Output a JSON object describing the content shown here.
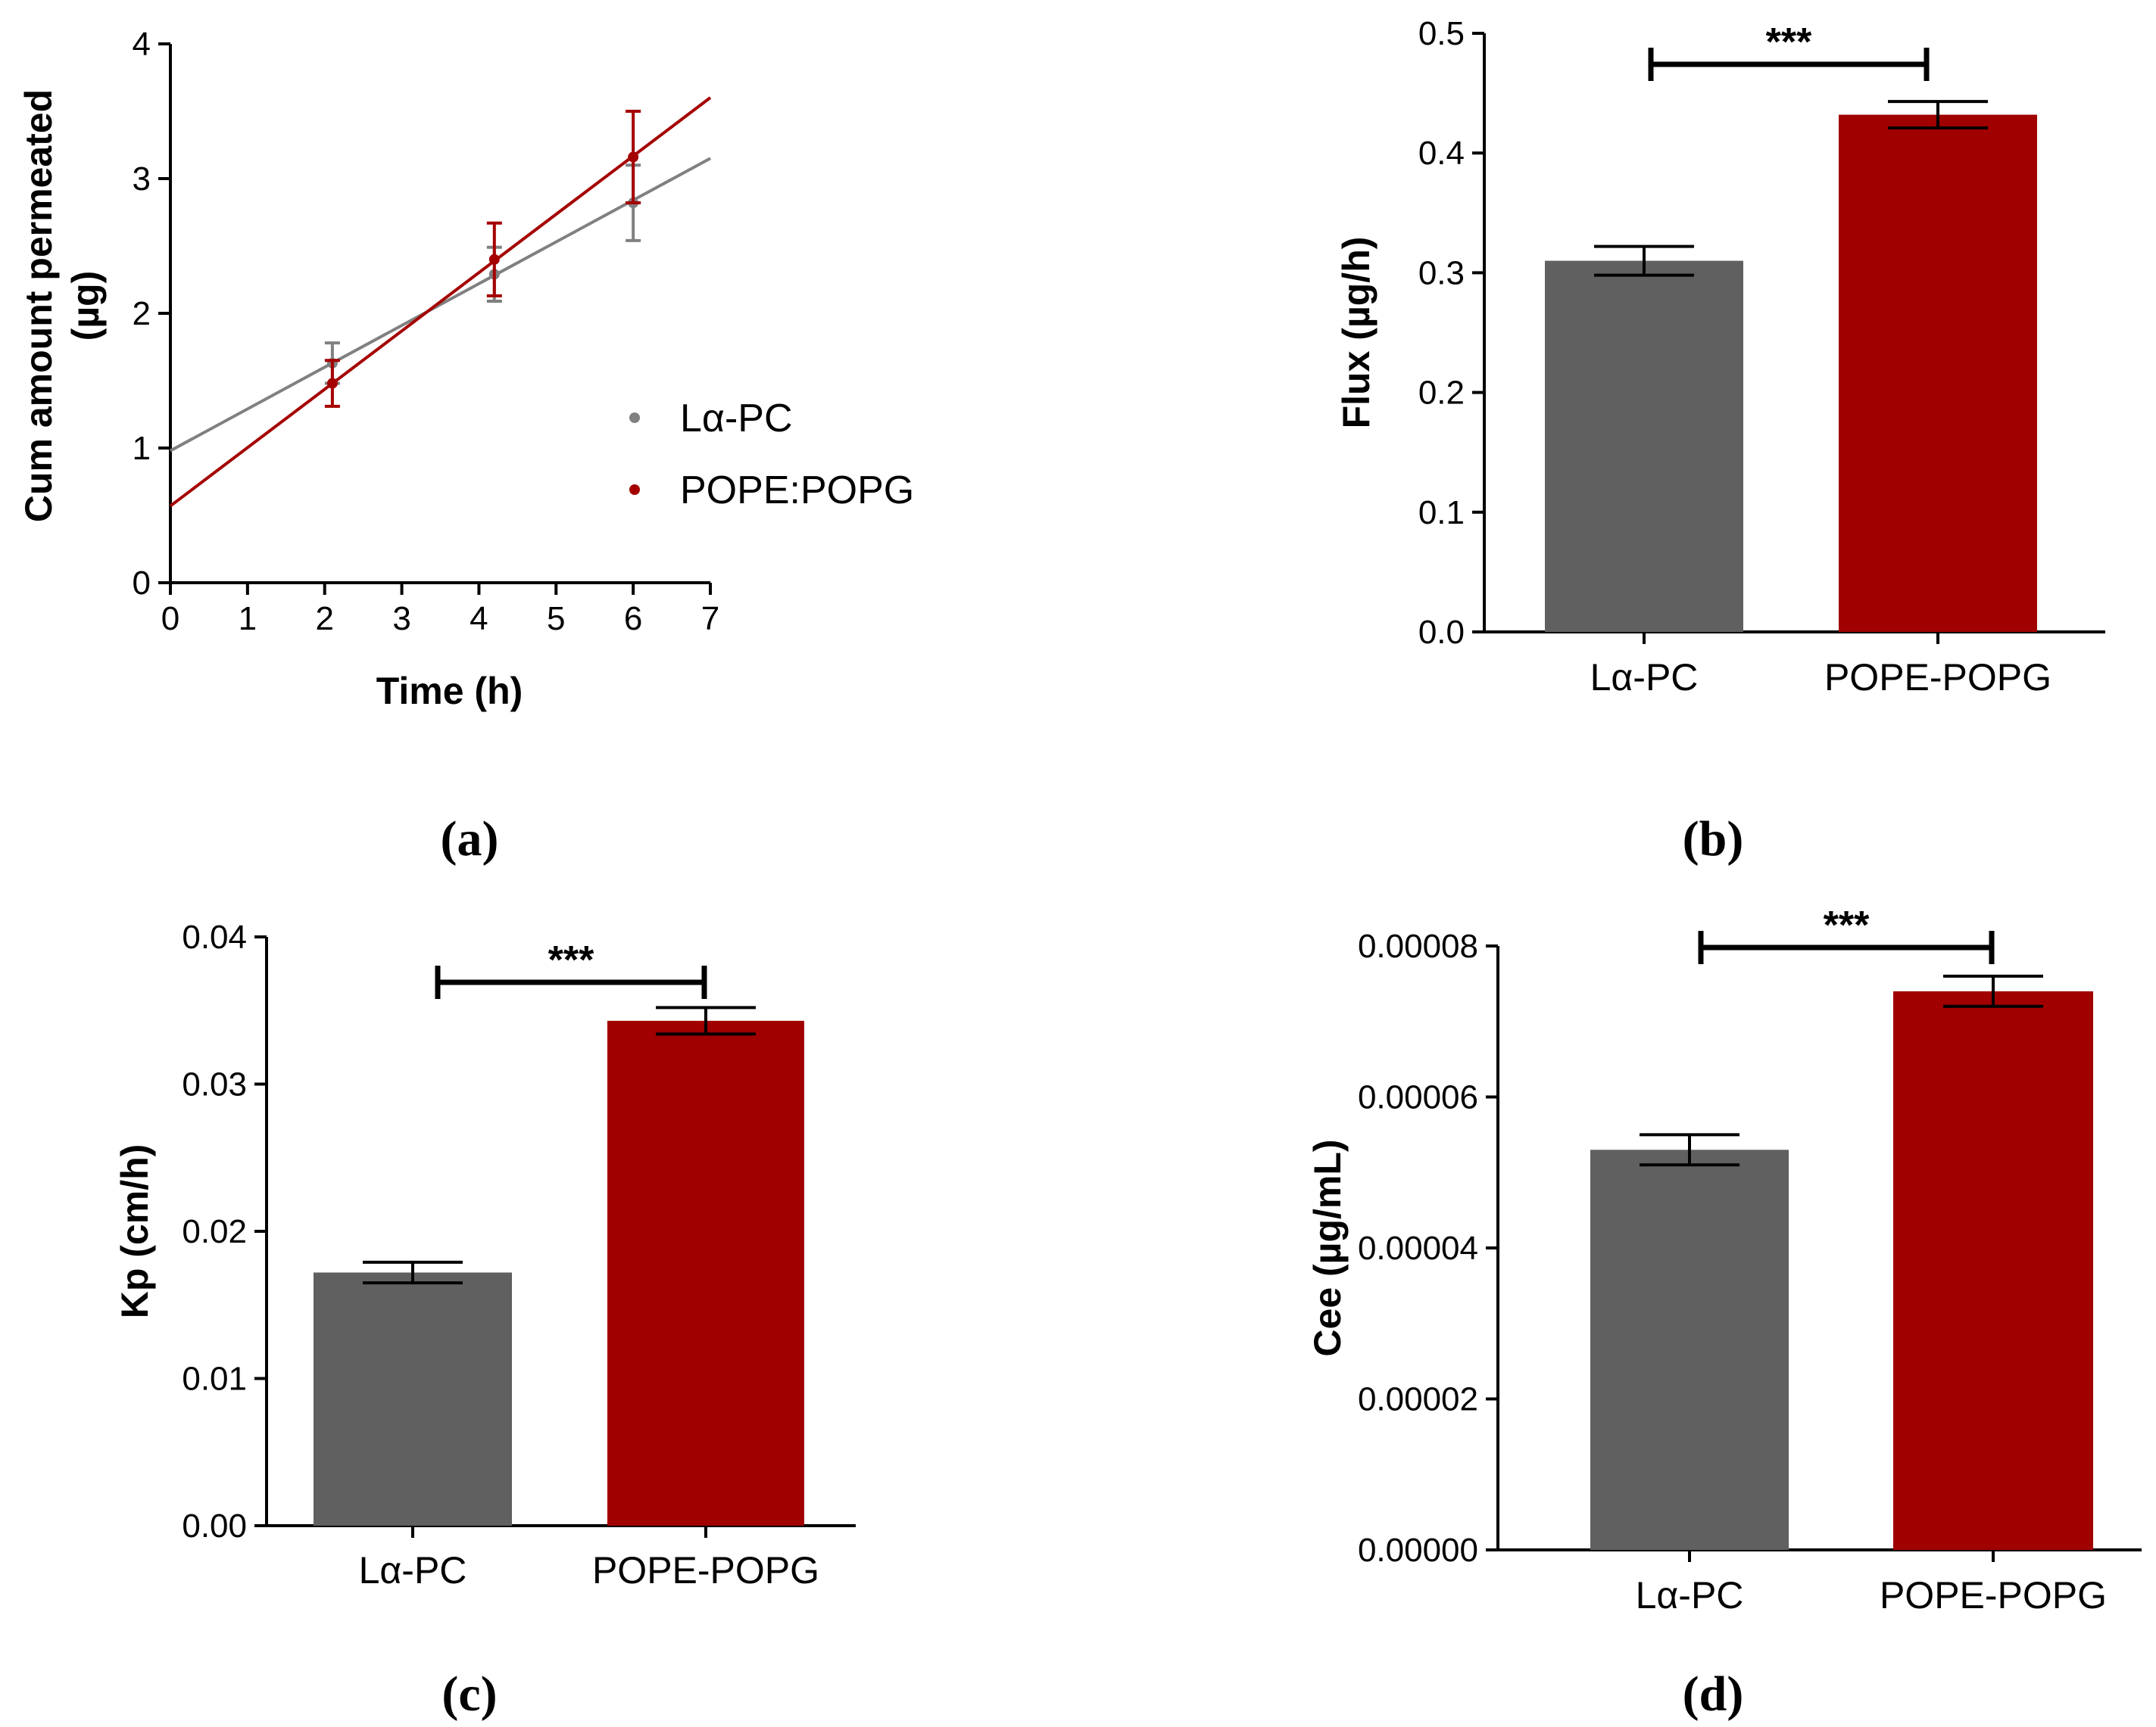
{
  "colors": {
    "series_pc": "#808080",
    "series_pope": "#a50000",
    "bar_pc": "#606060",
    "bar_pope": "#a00000",
    "axis": "#000000"
  },
  "chart_data": [
    {
      "id": "a",
      "type": "scatter",
      "panel_label": "(a)",
      "xlabel": "Time (h)",
      "ylabel_lines": [
        "Cum amount permeated",
        "(µg)"
      ],
      "xlim": [
        0,
        7
      ],
      "ylim": [
        0,
        4
      ],
      "xticks": [
        "0",
        "1",
        "2",
        "3",
        "4",
        "5",
        "6",
        "7"
      ],
      "yticks": [
        "0",
        "1",
        "2",
        "3",
        "4"
      ],
      "legend_position": "right",
      "series": [
        {
          "name": "Lα-PC",
          "color": "#808080",
          "x": [
            2.1,
            4.2,
            6.0
          ],
          "y": [
            1.63,
            2.29,
            2.82
          ],
          "err": [
            0.15,
            0.2,
            0.28
          ],
          "fit": {
            "intercept": 0.98,
            "slope": 0.31
          }
        },
        {
          "name": "POPE:POPG",
          "color": "#a50000",
          "x": [
            2.1,
            4.2,
            6.0
          ],
          "y": [
            1.48,
            2.4,
            3.16
          ],
          "err": [
            0.17,
            0.27,
            0.34
          ],
          "fit": {
            "intercept": 0.57,
            "slope": 0.433
          }
        }
      ]
    },
    {
      "id": "b",
      "type": "bar",
      "panel_label": "(b)",
      "ylabel": "Flux (µg/h)",
      "categories": [
        "Lα-PC",
        "POPE-POPG"
      ],
      "values": [
        0.31,
        0.432
      ],
      "err": [
        0.012,
        0.011
      ],
      "ylim": [
        0,
        0.5
      ],
      "yticks": [
        "0.0",
        "0.1",
        "0.2",
        "0.3",
        "0.4",
        "0.5"
      ],
      "significance": "***"
    },
    {
      "id": "c",
      "type": "bar",
      "panel_label": "(c)",
      "ylabel": "Kp (cm/h)",
      "categories": [
        "Lα-PC",
        "POPE-POPG"
      ],
      "values": [
        0.0172,
        0.0343
      ],
      "err": [
        0.0007,
        0.0009
      ],
      "ylim": [
        0,
        0.04
      ],
      "yticks": [
        "0.00",
        "0.01",
        "0.02",
        "0.03",
        "0.04"
      ],
      "significance": "***"
    },
    {
      "id": "d",
      "type": "bar",
      "panel_label": "(d)",
      "ylabel": "Cee (µg/mL)",
      "categories": [
        "Lα-PC",
        "POPE-POPG"
      ],
      "values": [
        5.3e-05,
        7.4e-05
      ],
      "err": [
        2e-06,
        2e-06
      ],
      "ylim": [
        0,
        8e-05
      ],
      "yticks": [
        "0.00000",
        "0.00002",
        "0.00004",
        "0.00006",
        "0.00008"
      ],
      "significance": "***"
    }
  ]
}
